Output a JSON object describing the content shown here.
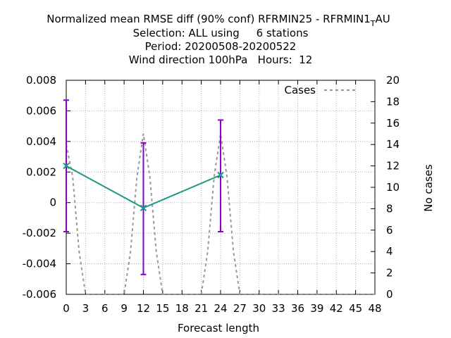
{
  "chart_data": {
    "type": "line",
    "title_lines": [
      "Normalized mean RMSE diff (90% conf) RFRMIN25 - RFRMIN1",
      "Selection: ALL using     6 stations",
      "Period: 20200508-20200522",
      "Wind direction 100hPa   Hours:  12"
    ],
    "title_suffix_sub": "T",
    "title_suffix_rest": "AU",
    "xlabel": "Forecast length",
    "ylabel": "",
    "y2label": "No cases",
    "xlim": [
      0,
      48
    ],
    "ylim": [
      -0.006,
      0.008
    ],
    "y2lim": [
      0,
      20
    ],
    "x_ticks": [
      0,
      3,
      6,
      9,
      12,
      15,
      18,
      21,
      24,
      27,
      30,
      33,
      36,
      39,
      42,
      45,
      48
    ],
    "y_ticks": [
      -0.006,
      -0.004,
      -0.002,
      0,
      0.002,
      0.004,
      0.006,
      0.008
    ],
    "y_tick_labels": [
      "-0.006",
      "-0.004",
      "-0.002",
      "0",
      "0.002",
      "0.004",
      "0.006",
      "0.008"
    ],
    "y2_ticks": [
      0,
      2,
      4,
      6,
      8,
      10,
      12,
      14,
      16,
      18,
      20
    ],
    "grid": true,
    "legend": {
      "position": "top-right",
      "entries": [
        "Cases"
      ]
    },
    "series": [
      {
        "name": "",
        "color": "#1a9a84",
        "x": [
          0,
          12,
          24
        ],
        "y": [
          0.0024,
          -0.00035,
          0.0018
        ],
        "err_low": [
          -0.0019,
          -0.0047,
          -0.0019
        ],
        "err_high": [
          0.0067,
          0.0039,
          0.0054
        ],
        "err_color": "#8a00c8"
      },
      {
        "name": "Cases",
        "axis": "y2",
        "color": "#999999",
        "dash": true,
        "x": [
          0,
          1,
          2,
          3,
          4,
          5,
          6,
          7,
          8,
          9,
          10,
          11,
          12,
          13,
          14,
          15,
          16,
          17,
          18,
          19,
          20,
          21,
          22,
          23,
          24,
          25,
          26,
          27,
          28,
          29,
          30,
          31,
          32,
          33,
          34,
          35,
          36,
          37,
          38,
          39,
          40,
          41,
          42,
          43,
          44,
          45,
          46,
          47,
          48
        ],
        "y": [
          14,
          11,
          4,
          0,
          0,
          0,
          0,
          0,
          0,
          0,
          4,
          11,
          15,
          11,
          4,
          0,
          0,
          0,
          0,
          0,
          0,
          0,
          4,
          11,
          15,
          11,
          4,
          0,
          0,
          0,
          0,
          0,
          0,
          0,
          0,
          0,
          0,
          0,
          0,
          0,
          0,
          0,
          0,
          0,
          0,
          0,
          0,
          0,
          0
        ]
      }
    ]
  }
}
